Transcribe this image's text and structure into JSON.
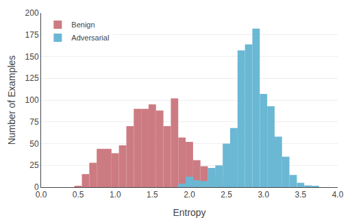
{
  "chart_data": {
    "type": "histogram",
    "xlabel": "Entropy",
    "ylabel": "Number of Examples",
    "xlim": [
      0,
      4
    ],
    "ylim": [
      0,
      200
    ],
    "xticks": [
      {
        "value": 0,
        "label": "0.0"
      },
      0.5,
      {
        "value": 1.0,
        "label": "1.0"
      },
      1.5,
      {
        "value": 2.0,
        "label": "2.0"
      },
      2.5,
      {
        "value": 3.0,
        "label": "3.0"
      },
      3.5,
      {
        "value": 4.0,
        "label": "4.0"
      }
    ],
    "yticks": [
      0,
      25,
      50,
      75,
      100,
      125,
      150,
      175,
      200
    ],
    "grid": true,
    "legend": "upper left",
    "series": [
      {
        "name": "Benign",
        "color": "#cd7b82",
        "bins": [
          0.45,
          0.55,
          0.65,
          0.75,
          0.85,
          0.95,
          1.05,
          1.15,
          1.25,
          1.35,
          1.45,
          1.55,
          1.65,
          1.75,
          1.85,
          1.95,
          2.05,
          2.15,
          2.25,
          2.35,
          2.45,
          2.55
        ],
        "values": [
          1,
          15,
          28,
          44,
          44,
          39,
          48,
          70,
          90,
          90,
          95,
          88,
          70,
          102,
          57,
          52,
          31,
          24,
          22,
          14,
          5
        ]
      },
      {
        "name": "Adversarial",
        "color": "#6ab8d4",
        "bins": [
          1.85,
          1.95,
          2.05,
          2.15,
          2.25,
          2.35,
          2.45,
          2.55,
          2.65,
          2.75,
          2.85,
          2.95,
          3.05,
          3.15,
          3.25,
          3.35,
          3.45,
          3.55,
          3.65,
          3.75
        ],
        "values": [
          4,
          12,
          8,
          7,
          22,
          25,
          50,
          68,
          157,
          164,
          182,
          107,
          93,
          58,
          35,
          14,
          5,
          2,
          1
        ]
      }
    ]
  }
}
